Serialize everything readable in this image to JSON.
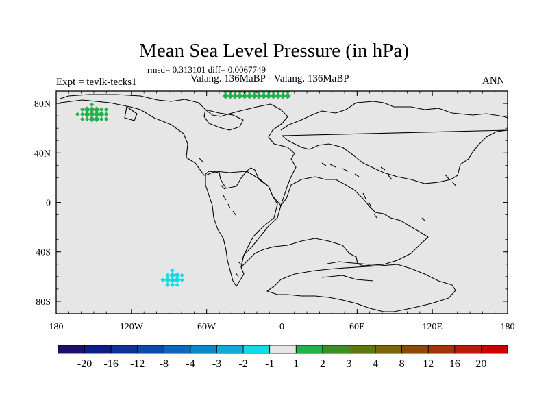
{
  "header": {
    "title": "Mean Sea Level Pressure (in hPa)",
    "stats": "rmsd= 0.313101 diff= 0.0067749",
    "left_label": "Expt = tevlk-tecks1",
    "center_label": "Valang. 136MaBP - Valang. 136MaBP",
    "right_label": "ANN"
  },
  "chart_data": {
    "type": "heatmap",
    "title": "Mean Sea Level Pressure (in hPa)",
    "projection": "cylindrical equidistant",
    "xlim": [
      -180,
      180
    ],
    "ylim": [
      -90,
      90
    ],
    "x_ticks": [
      {
        "value": -180,
        "label": "180"
      },
      {
        "value": -120,
        "label": "120W"
      },
      {
        "value": -60,
        "label": "60W"
      },
      {
        "value": 0,
        "label": "0"
      },
      {
        "value": 60,
        "label": "60E"
      },
      {
        "value": 120,
        "label": "120E"
      },
      {
        "value": 180,
        "label": "180"
      }
    ],
    "y_ticks": [
      {
        "value": 80,
        "label": "80N"
      },
      {
        "value": 40,
        "label": "40N"
      },
      {
        "value": 0,
        "label": "0"
      },
      {
        "value": -40,
        "label": "40S"
      },
      {
        "value": -80,
        "label": "80S"
      }
    ],
    "background_class": "-1 to 1",
    "colorbar": {
      "labels": [
        "-20",
        "-16",
        "-12",
        "-8",
        "-4",
        "-3",
        "-2",
        "-1",
        "1",
        "2",
        "3",
        "4",
        "8",
        "12",
        "16",
        "20"
      ],
      "colors": [
        "#1e0f6b",
        "#0b1f86",
        "#0d3294",
        "#0b4aa6",
        "#0d67bb",
        "#0a89c9",
        "#11abd6",
        "#0fdce6",
        "#e6e6e6",
        "#22b24a",
        "#3c8f25",
        "#5e7a0e",
        "#7a6508",
        "#8c4a07",
        "#a53208",
        "#bb1a0c",
        "#cc0000"
      ]
    },
    "anomalies": [
      {
        "name": "North Pacific positive",
        "class": "1 to 2",
        "color": "#22b24a",
        "lon": [
          -163,
          -138
        ],
        "lat": [
          64,
          79
        ]
      },
      {
        "name": "Arctic positive band",
        "class": "1 to 2",
        "color": "#22b24a",
        "lon": [
          -45,
          5
        ],
        "lat": [
          83,
          90
        ]
      },
      {
        "name": "Southern Ocean negative",
        "class": "-2 to -1",
        "color": "#0fdce6",
        "lon": [
          -95,
          -77
        ],
        "lat": [
          -68,
          -55
        ]
      }
    ]
  }
}
